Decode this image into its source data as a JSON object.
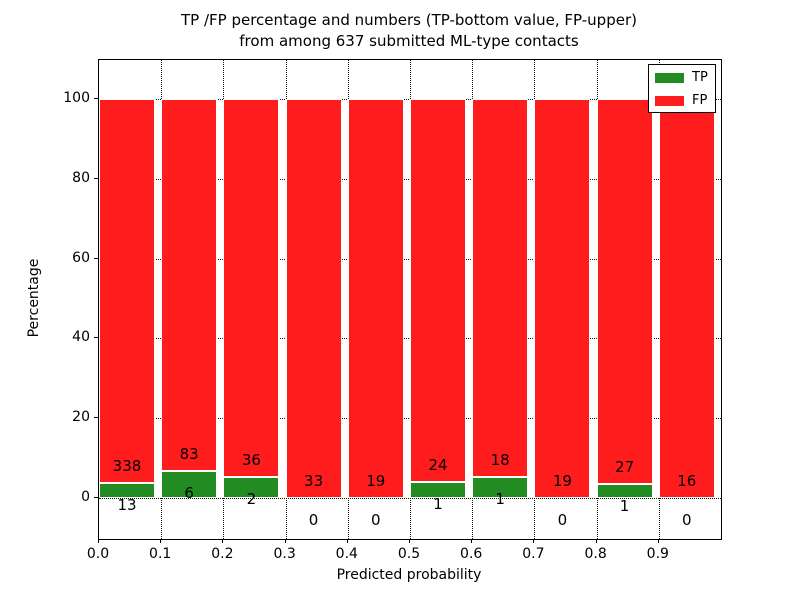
{
  "chart_data": {
    "type": "bar",
    "stacked": true,
    "normalized_to_percent": true,
    "title_line1": "TP /FP percentage and numbers (TP-bottom value, FP-upper)",
    "title_line2": "from among 637 submitted ML-type contacts",
    "xlabel": "Predicted probability",
    "ylabel": "Percentage",
    "total_contacts": 637,
    "bin_starts": [
      0.0,
      0.1,
      0.2,
      0.3,
      0.4,
      0.5,
      0.6,
      0.7,
      0.8,
      0.9
    ],
    "bin_width": 0.1,
    "bar_width": 0.09,
    "series": [
      {
        "name": "TP",
        "color": "#228b22",
        "counts": [
          13,
          6,
          2,
          0,
          0,
          1,
          1,
          0,
          1,
          0
        ]
      },
      {
        "name": "FP",
        "color": "#ff1c1c",
        "counts": [
          338,
          83,
          36,
          33,
          19,
          24,
          18,
          19,
          27,
          16
        ]
      }
    ],
    "x_tick_labels": [
      "0.0",
      "0.1",
      "0.2",
      "0.3",
      "0.4",
      "0.5",
      "0.6",
      "0.7",
      "0.8",
      "0.9"
    ],
    "y_tick_values": [
      0,
      20,
      40,
      60,
      80,
      100
    ],
    "y_tick_labels": [
      "0",
      "20",
      "40",
      "60",
      "80",
      "100"
    ],
    "xlim": [
      0,
      1.0
    ],
    "ylim": [
      -10.3,
      109.8
    ],
    "grid": "dotted",
    "grid_color": "#000000",
    "bar_edge_color": "#ffffff",
    "legend_position": "upper right",
    "legend_labels": [
      "TP",
      "FP"
    ]
  }
}
